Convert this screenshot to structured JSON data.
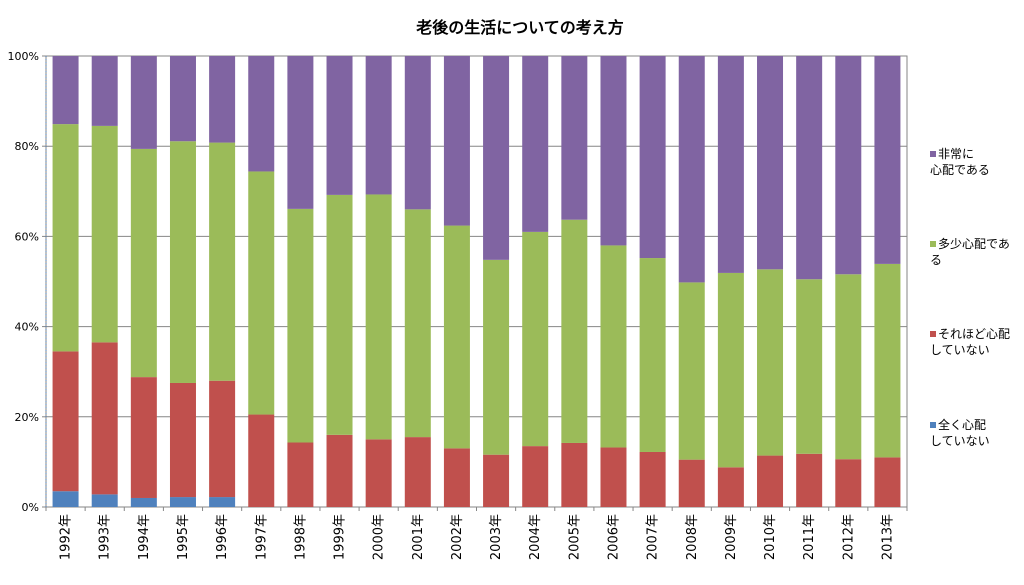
{
  "chart_data": {
    "type": "bar",
    "stacked": true,
    "title": "老後の生活についての考え方",
    "categories": [
      "1992年",
      "1993年",
      "1994年",
      "1995年",
      "1996年",
      "1997年",
      "1998年",
      "1999年",
      "2000年",
      "2001年",
      "2002年",
      "2003年",
      "2004年",
      "2005年",
      "2006年",
      "2007年",
      "2008年",
      "2009年",
      "2010年",
      "2011年",
      "2012年",
      "2013年"
    ],
    "series": [
      {
        "name": "全く心配していない",
        "color": "#4f81bd",
        "values": [
          3.5,
          2.8,
          2.0,
          2.2,
          2.2,
          0,
          0,
          0,
          0,
          0,
          0,
          0,
          0,
          0,
          0,
          0,
          0,
          0,
          0,
          0,
          0,
          0
        ]
      },
      {
        "name": "それほど心配していない",
        "color": "#c0504d",
        "values": [
          31.0,
          33.7,
          26.8,
          25.3,
          25.8,
          20.5,
          14.3,
          16.0,
          15.0,
          15.5,
          13.0,
          11.6,
          13.5,
          14.2,
          13.2,
          12.2,
          10.5,
          8.8,
          11.4,
          11.8,
          10.6,
          11.0
        ]
      },
      {
        "name": "多少心配である",
        "color": "#9bbb59",
        "values": [
          50.4,
          48.0,
          50.6,
          53.6,
          52.8,
          53.9,
          51.8,
          53.2,
          54.3,
          50.5,
          49.4,
          43.2,
          47.5,
          49.5,
          44.8,
          43.0,
          39.3,
          43.1,
          41.3,
          38.7,
          41.0,
          42.9
        ]
      },
      {
        "name": "非常に心配である",
        "color": "#8064a2",
        "values": [
          15.1,
          15.5,
          20.6,
          18.9,
          19.2,
          25.6,
          33.9,
          30.8,
          30.7,
          34.0,
          37.6,
          45.2,
          39.0,
          36.3,
          42.0,
          44.8,
          50.2,
          48.1,
          47.3,
          49.5,
          48.4,
          46.1
        ]
      }
    ],
    "ylim": [
      0,
      100
    ],
    "yticks": [
      "0%",
      "20%",
      "40%",
      "60%",
      "80%",
      "100%"
    ],
    "legend_position": "right",
    "grid": true
  },
  "legend": [
    {
      "label": "非常に\n心配である"
    },
    {
      "label": "多少心配であ\nる"
    },
    {
      "label": "それほど心配\nしていない"
    },
    {
      "label": "全く心配\nしていない"
    }
  ]
}
